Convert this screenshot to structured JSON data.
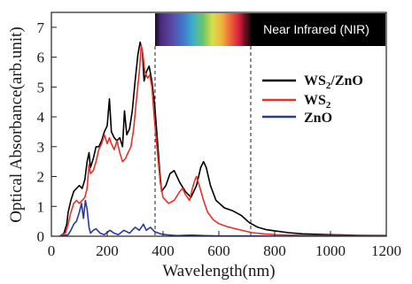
{
  "chart_data": {
    "type": "line",
    "title": "",
    "xlabel": "Wavelength(nm)",
    "ylabel": "Optical Absorbance(arb.unit)",
    "xlim": [
      0,
      1200
    ],
    "ylim": [
      0,
      7.5
    ],
    "xticks": [
      0,
      200,
      400,
      600,
      800,
      1000,
      1200
    ],
    "yticks": [
      0,
      1,
      2,
      3,
      4,
      5,
      6,
      7
    ],
    "grid": false,
    "legend_position": "upper-right",
    "legend": [
      {
        "base": "WS",
        "sub": "2",
        "rest": "/ZnO",
        "color": "#000000"
      },
      {
        "base": "WS",
        "sub": "2",
        "rest": "",
        "color": "#e8312a"
      },
      {
        "base": "ZnO",
        "sub": "",
        "rest": "",
        "color": "#2a3a9a"
      }
    ],
    "annotations": {
      "nir_label": "Near Infrared (NIR)",
      "visible_band_nm": [
        390,
        700
      ]
    },
    "series": [
      {
        "name": "WS2/ZnO",
        "color": "#000000",
        "points": [
          [
            30,
            0
          ],
          [
            45,
            0.1
          ],
          [
            55,
            0.4
          ],
          [
            60,
            0.8
          ],
          [
            70,
            1.2
          ],
          [
            80,
            1.5
          ],
          [
            90,
            1.6
          ],
          [
            100,
            1.7
          ],
          [
            110,
            1.6
          ],
          [
            120,
            1.9
          ],
          [
            128,
            2.5
          ],
          [
            135,
            2.8
          ],
          [
            140,
            2.3
          ],
          [
            150,
            2.6
          ],
          [
            160,
            3.0
          ],
          [
            170,
            3.0
          ],
          [
            180,
            3.2
          ],
          [
            190,
            3.5
          ],
          [
            200,
            3.7
          ],
          [
            208,
            4.6
          ],
          [
            215,
            3.5
          ],
          [
            225,
            3.3
          ],
          [
            235,
            3.2
          ],
          [
            245,
            3.3
          ],
          [
            255,
            3.0
          ],
          [
            262,
            4.2
          ],
          [
            270,
            3.4
          ],
          [
            280,
            3.6
          ],
          [
            290,
            4.2
          ],
          [
            300,
            5.2
          ],
          [
            310,
            6.1
          ],
          [
            318,
            6.5
          ],
          [
            326,
            6.2
          ],
          [
            332,
            5.2
          ],
          [
            340,
            5.5
          ],
          [
            350,
            5.7
          ],
          [
            360,
            5.2
          ],
          [
            370,
            4.4
          ],
          [
            380,
            3.2
          ],
          [
            388,
            2.2
          ],
          [
            395,
            1.5
          ],
          [
            410,
            1.7
          ],
          [
            425,
            2.1
          ],
          [
            440,
            2.2
          ],
          [
            460,
            1.8
          ],
          [
            480,
            1.5
          ],
          [
            500,
            1.3
          ],
          [
            520,
            1.7
          ],
          [
            535,
            2.3
          ],
          [
            545,
            2.5
          ],
          [
            555,
            2.3
          ],
          [
            570,
            1.7
          ],
          [
            590,
            1.2
          ],
          [
            620,
            0.95
          ],
          [
            650,
            0.85
          ],
          [
            680,
            0.7
          ],
          [
            710,
            0.45
          ],
          [
            740,
            0.3
          ],
          [
            770,
            0.22
          ],
          [
            800,
            0.18
          ],
          [
            850,
            0.12
          ],
          [
            900,
            0.08
          ],
          [
            1000,
            0.05
          ],
          [
            1100,
            0.03
          ],
          [
            1200,
            0.02
          ]
        ]
      },
      {
        "name": "WS2",
        "color": "#e8312a",
        "points": [
          [
            30,
            0
          ],
          [
            50,
            0.1
          ],
          [
            60,
            0.4
          ],
          [
            70,
            0.8
          ],
          [
            80,
            1.1
          ],
          [
            90,
            1.2
          ],
          [
            100,
            1.1
          ],
          [
            110,
            1.2
          ],
          [
            120,
            1.3
          ],
          [
            128,
            1.6
          ],
          [
            135,
            2.4
          ],
          [
            140,
            2.1
          ],
          [
            150,
            2.2
          ],
          [
            160,
            2.5
          ],
          [
            170,
            2.9
          ],
          [
            180,
            3.1
          ],
          [
            190,
            3.4
          ],
          [
            200,
            3.1
          ],
          [
            208,
            3.3
          ],
          [
            215,
            3.1
          ],
          [
            225,
            2.9
          ],
          [
            235,
            3.2
          ],
          [
            245,
            2.8
          ],
          [
            255,
            2.5
          ],
          [
            265,
            2.6
          ],
          [
            275,
            2.8
          ],
          [
            285,
            3.0
          ],
          [
            295,
            3.6
          ],
          [
            305,
            4.6
          ],
          [
            315,
            5.5
          ],
          [
            322,
            6.4
          ],
          [
            328,
            6.1
          ],
          [
            335,
            5.5
          ],
          [
            345,
            5.3
          ],
          [
            352,
            5.4
          ],
          [
            360,
            5.0
          ],
          [
            370,
            3.8
          ],
          [
            380,
            2.8
          ],
          [
            390,
            1.8
          ],
          [
            400,
            1.3
          ],
          [
            420,
            1.1
          ],
          [
            440,
            1.2
          ],
          [
            460,
            1.5
          ],
          [
            470,
            1.6
          ],
          [
            480,
            1.4
          ],
          [
            495,
            1.2
          ],
          [
            505,
            1.6
          ],
          [
            515,
            1.9
          ],
          [
            520,
            2.0
          ],
          [
            530,
            1.7
          ],
          [
            545,
            1.2
          ],
          [
            560,
            0.8
          ],
          [
            580,
            0.55
          ],
          [
            600,
            0.42
          ],
          [
            630,
            0.32
          ],
          [
            660,
            0.25
          ],
          [
            690,
            0.18
          ],
          [
            720,
            0.12
          ],
          [
            760,
            0.08
          ],
          [
            800,
            0.05
          ],
          [
            900,
            0.03
          ],
          [
            1000,
            0.02
          ],
          [
            1200,
            0.01
          ]
        ]
      },
      {
        "name": "ZnO",
        "color": "#2a3a9a",
        "points": [
          [
            30,
            0
          ],
          [
            60,
            0.05
          ],
          [
            70,
            0.2
          ],
          [
            80,
            0.4
          ],
          [
            90,
            0.5
          ],
          [
            100,
            0.8
          ],
          [
            108,
            1.1
          ],
          [
            115,
            0.6
          ],
          [
            122,
            1.2
          ],
          [
            128,
            0.9
          ],
          [
            135,
            0.3
          ],
          [
            140,
            0.1
          ],
          [
            150,
            0.2
          ],
          [
            160,
            0.25
          ],
          [
            175,
            0.1
          ],
          [
            190,
            0.05
          ],
          [
            210,
            0.2
          ],
          [
            225,
            0.1
          ],
          [
            240,
            0.05
          ],
          [
            260,
            0.2
          ],
          [
            280,
            0.1
          ],
          [
            300,
            0.3
          ],
          [
            315,
            0.2
          ],
          [
            330,
            0.4
          ],
          [
            340,
            0.2
          ],
          [
            355,
            0.3
          ],
          [
            370,
            0.15
          ],
          [
            390,
            0.08
          ],
          [
            410,
            0.05
          ],
          [
            450,
            0.02
          ],
          [
            500,
            0.04
          ],
          [
            550,
            0.02
          ],
          [
            600,
            0.01
          ],
          [
            700,
            0.01
          ],
          [
            800,
            0
          ],
          [
            1000,
            0
          ],
          [
            1200,
            0
          ]
        ]
      }
    ]
  }
}
